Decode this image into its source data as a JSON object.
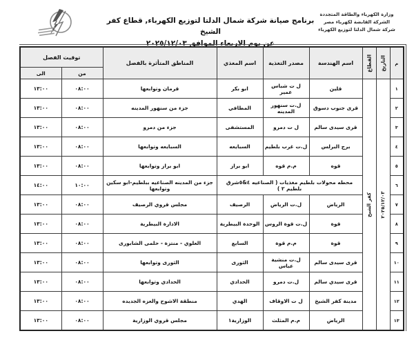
{
  "header": {
    "org_lines": [
      "وزارة الكهرباء والطاقة المتجددة",
      "الشركة القابضة لكهرباء مصر",
      "شركة شمال الدلتا لتوزيع الكهرباء"
    ],
    "title_line1": "برنامج صيانة شركة شمال الدلتا لتوزيع الكهرباء, قطاع  كفر الشيخ",
    "title_line2": "عن يوم الاربعاء الموافق ٢٠٢٥/١٢/٠٣",
    "logo_icon": "electricity-company-logo"
  },
  "table": {
    "headers": {
      "serial": "م",
      "date": "التاريخ",
      "sector": "القطاع",
      "engineering": "اسم الهندسة",
      "source": "مصدر التغذية",
      "feeder": "اسم المغذي",
      "areas": "المناطق المتأثرة بالفصل",
      "timing": "توقيت الفصل",
      "from": "من",
      "to": "الى"
    },
    "date_value": "٢٠٢٥/١٢/٠٣",
    "sector_value": "كفر الشيخ",
    "rows": [
      {
        "serial": "١",
        "engineering": "قلين",
        "source": "ل ت شباس عمير",
        "feeder": "ابو بكر",
        "areas": "قرمان وتوابعها",
        "from": "٠٨:٠٠",
        "to": "١٣:٠٠"
      },
      {
        "serial": "٢",
        "engineering": "قرى جنوب دسوق",
        "source": "ل.ت سنهور المدينه",
        "feeder": "المطافي",
        "areas": "جزء من سنهور المدينه",
        "from": "٠٨:٠٠",
        "to": "١٣:٠٠"
      },
      {
        "serial": "٣",
        "engineering": "قرى سيدى سالم",
        "source": "ل ت دمرو",
        "feeder": "المستشفى",
        "areas": "جزء من دمرو",
        "from": "٠٨:٠٠",
        "to": "١٣:٠٠"
      },
      {
        "serial": "٤",
        "engineering": "برج البرلس",
        "source": "ل.ت غرب بلطيم",
        "feeder": "السبايعه",
        "areas": "السبايعه وتوابعها",
        "from": "٠٨:٠٠",
        "to": "١٣:٠٠"
      },
      {
        "serial": "٥",
        "engineering": "قوه",
        "source": "م.م قوه",
        "feeder": "ابو براز",
        "areas": "ابو براز وتوابعها",
        "from": "٠٨:٠٠",
        "to": "١٣:٠٠"
      },
      {
        "serial": "٦",
        "merged": "محطه محولات بلطيم مغذيات ( الصناعيه ٤&٥شرق بلطيم ٢ )",
        "areas": "جزء من المدينه الصناعيه ببلطيم-ابو سكين وتوابعها",
        "from": "١٠:٠٠",
        "to": "١٤:٠٠"
      },
      {
        "serial": "٧",
        "engineering": "الرياض",
        "source": "ل.ت الرياض",
        "feeder": "الرصيف",
        "areas": "مجلس قروي الرصيف",
        "from": "٠٨:٠٠",
        "to": "١٣:٠٠"
      },
      {
        "serial": "٨",
        "engineering": "قوة",
        "source": "ل.ت قوة الروس",
        "feeder": "الوحدة البيطرية",
        "areas": "الادارة البيطرية",
        "from": "٠٨:٠٠",
        "to": "١٣:٠٠"
      },
      {
        "serial": "٩",
        "engineering": "قوة",
        "source": "م.م قوة",
        "feeder": "السابع",
        "areas": "العلوي - منتزة - حلمى الشابورى",
        "from": "٠٨:٠٠",
        "to": "١٣:٠٠"
      },
      {
        "serial": "١٠",
        "engineering": "قرى سيدى سالم",
        "source": "ل.ت منشية عباس",
        "feeder": "الثورى",
        "areas": "الثورى وتوابعها",
        "from": "٠٨:٠٠",
        "to": "١٣:٠٠"
      },
      {
        "serial": "١١",
        "engineering": "قرى سيدي سالم",
        "source": "ل.ت دمرو",
        "feeder": "الحدادي",
        "areas": "الحدادي وتوابعها",
        "from": "٠٨:٠٠",
        "to": "١٣:٠٠"
      },
      {
        "serial": "١٢",
        "engineering": "مدينة كفر الشيخ",
        "source": "ل ت الاوقاف",
        "feeder": "الهدي",
        "areas": "منطقة الاشوح والعزه الجديده",
        "from": "٠٨:٠٠",
        "to": "١٣:٠٠"
      },
      {
        "serial": "١٣",
        "engineering": "الرياض",
        "source": "م.م المثلث",
        "feeder": "الوزارية١",
        "areas": "مجلس قروي الوزارية",
        "from": "٠٨:٠٠",
        "to": "١٣:٠٠"
      }
    ]
  }
}
